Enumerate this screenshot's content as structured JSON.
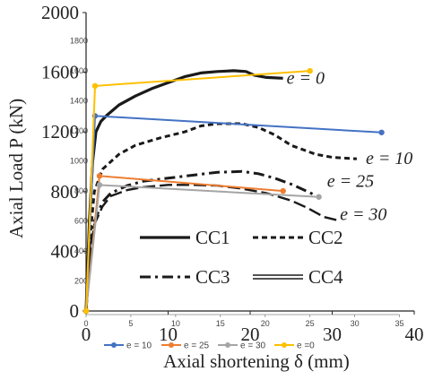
{
  "chart_data": [
    {
      "type": "line",
      "title": "",
      "xlabel": "Axial shortening δ (mm)",
      "ylabel": "Axial Load P (kN)",
      "xlim": [
        0,
        40
      ],
      "ylim": [
        0,
        2000
      ],
      "xticks": [
        "0",
        "10",
        "20",
        "30",
        "40"
      ],
      "yticks": [
        "0",
        "400",
        "800",
        "1200",
        "1600",
        "2000"
      ],
      "grid": false,
      "legend_placement": "inside-lower-center",
      "series": [
        {
          "name": "CC1",
          "line_style": "solid",
          "color": "#1a1a1a",
          "end_label": "e = 0",
          "x": [
            0,
            0.4,
            0.8,
            1.2,
            1.8,
            2.5,
            4,
            6,
            8,
            10,
            12,
            14,
            16,
            18,
            19.5,
            20.5,
            22,
            24
          ],
          "y": [
            0,
            600,
            1000,
            1200,
            1270,
            1310,
            1380,
            1440,
            1490,
            1530,
            1570,
            1595,
            1605,
            1610,
            1605,
            1580,
            1565,
            1560
          ]
        },
        {
          "name": "CC2",
          "line_style": "dashed",
          "color": "#1a1a1a",
          "end_label": "e = 10",
          "x": [
            0,
            0.5,
            1,
            2,
            4,
            6,
            9,
            12,
            14,
            16,
            19,
            21,
            23,
            25,
            28,
            30,
            33
          ],
          "y": [
            0,
            500,
            800,
            950,
            1050,
            1110,
            1160,
            1200,
            1240,
            1255,
            1255,
            1230,
            1180,
            1110,
            1050,
            1030,
            1020
          ]
        },
        {
          "name": "CC3",
          "line_style": "dash-dot",
          "color": "#1a1a1a",
          "end_label": "e = 25",
          "x": [
            0,
            0.5,
            1,
            2,
            3,
            5,
            7,
            10,
            13,
            16,
            19,
            21,
            23,
            25,
            27,
            28.5
          ],
          "y": [
            0,
            400,
            600,
            730,
            790,
            840,
            870,
            890,
            910,
            930,
            935,
            920,
            890,
            850,
            800,
            760
          ]
        },
        {
          "name": "CC4",
          "line_style": "long-dash",
          "color": "#1a1a1a",
          "end_label": "e = 30",
          "x": [
            0,
            0.5,
            1,
            2,
            3,
            5,
            7,
            10,
            13,
            16,
            19,
            22,
            25,
            27,
            29,
            30.5
          ],
          "y": [
            0,
            400,
            580,
            700,
            770,
            810,
            830,
            845,
            845,
            840,
            820,
            790,
            740,
            690,
            630,
            610
          ]
        }
      ]
    },
    {
      "type": "line",
      "title": "",
      "xlabel": "",
      "ylabel": "",
      "xlim": [
        0,
        35
      ],
      "ylim": [
        0,
        1800
      ],
      "xticks": [
        "0",
        "5",
        "10",
        "15",
        "20",
        "25",
        "30",
        "35"
      ],
      "yticks": [
        "0",
        "200",
        "400",
        "600",
        "800",
        "1000",
        "1200",
        "1400",
        "1600",
        "1800"
      ],
      "grid": false,
      "legend_placement": "bottom",
      "series": [
        {
          "name": "e = 10",
          "color": "#4472c4",
          "x": [
            0,
            1,
            33
          ],
          "y": [
            0,
            1300,
            1190
          ]
        },
        {
          "name": "e = 25",
          "color": "#ed7d31",
          "x": [
            0,
            1.5,
            22
          ],
          "y": [
            0,
            900,
            800
          ]
        },
        {
          "name": "e = 30",
          "color": "#a5a5a5",
          "x": [
            0,
            1.5,
            26
          ],
          "y": [
            0,
            840,
            760
          ]
        },
        {
          "name": "e =0",
          "color": "#ffc000",
          "x": [
            0,
            1,
            25
          ],
          "y": [
            0,
            1500,
            1600
          ]
        }
      ]
    }
  ]
}
